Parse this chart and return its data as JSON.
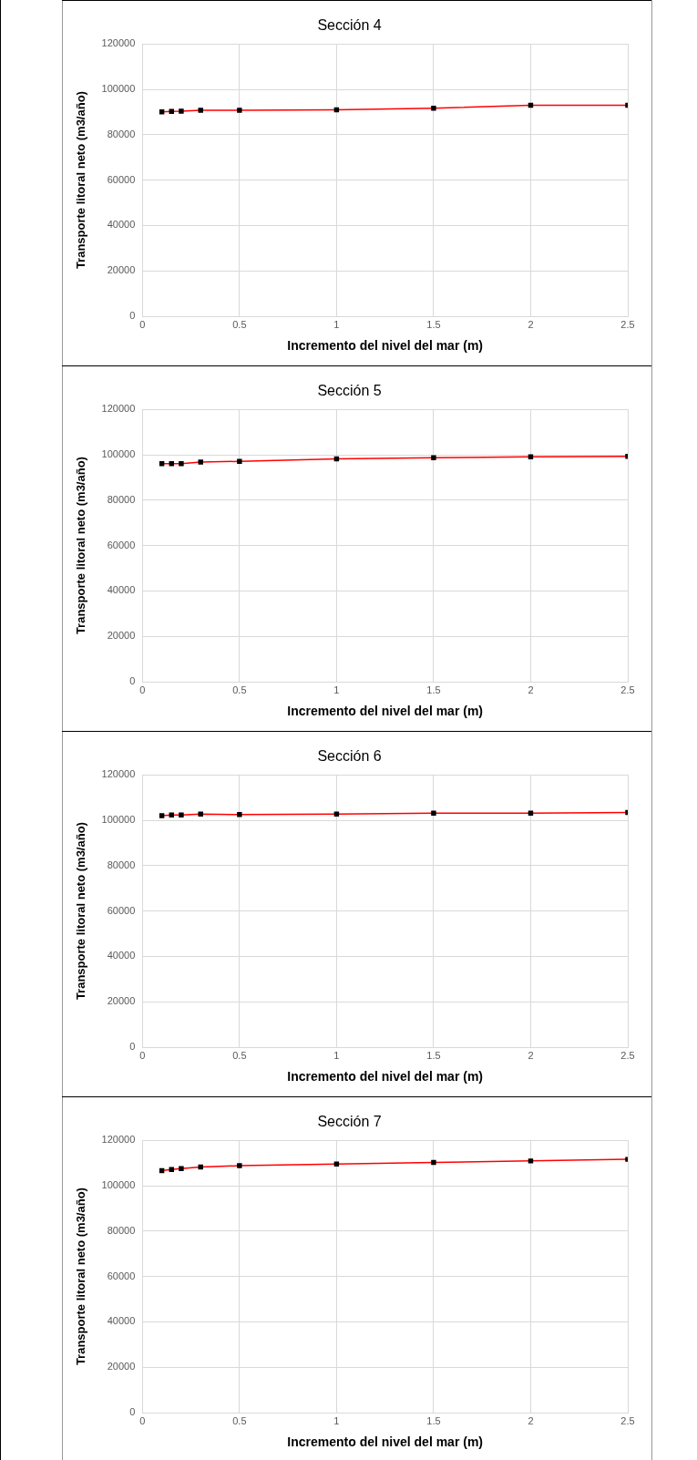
{
  "chart_data": [
    {
      "type": "line",
      "title": "Sección 4",
      "xlabel": "Incremento del nivel del mar (m)",
      "ylabel": "Transporte litoral neto (m3/año)",
      "x": [
        0.1,
        0.15,
        0.2,
        0.3,
        0.5,
        1,
        1.5,
        2,
        2.5
      ],
      "values": [
        90100,
        90300,
        90400,
        90800,
        90800,
        91000,
        91700,
        93000,
        93000
      ],
      "color": "#ff0000",
      "marker": "square",
      "xlim": [
        0,
        2.5
      ],
      "ylim": [
        0,
        120000
      ],
      "xticks": [
        0,
        0.5,
        1,
        1.5,
        2,
        2.5
      ],
      "yticks": [
        0,
        20000,
        40000,
        60000,
        80000,
        100000,
        120000
      ],
      "grid": true
    },
    {
      "type": "line",
      "title": "Sección 5",
      "xlabel": "Incremento del nivel del mar (m)",
      "ylabel": "Transporte litoral neto (m3/año)",
      "x": [
        0.1,
        0.15,
        0.2,
        0.3,
        0.5,
        1,
        1.5,
        2,
        2.5
      ],
      "values": [
        96100,
        96100,
        96100,
        96800,
        97100,
        98200,
        98700,
        99100,
        99300
      ],
      "color": "#ff0000",
      "marker": "square",
      "xlim": [
        0,
        2.5
      ],
      "ylim": [
        0,
        120000
      ],
      "xticks": [
        0,
        0.5,
        1,
        1.5,
        2,
        2.5
      ],
      "yticks": [
        0,
        20000,
        40000,
        60000,
        80000,
        100000,
        120000
      ],
      "grid": true
    },
    {
      "type": "line",
      "title": "Sección 6",
      "xlabel": "Incremento del nivel del mar (m)",
      "ylabel": "Transporte litoral neto (m3/año)",
      "x": [
        0.1,
        0.15,
        0.2,
        0.3,
        0.5,
        1,
        1.5,
        2,
        2.5
      ],
      "values": [
        102000,
        102300,
        102300,
        102700,
        102500,
        102700,
        103100,
        103100,
        103400
      ],
      "color": "#ff0000",
      "marker": "square",
      "xlim": [
        0,
        2.5
      ],
      "ylim": [
        0,
        120000
      ],
      "xticks": [
        0,
        0.5,
        1,
        1.5,
        2,
        2.5
      ],
      "yticks": [
        0,
        20000,
        40000,
        60000,
        80000,
        100000,
        120000
      ],
      "grid": true
    },
    {
      "type": "line",
      "title": "Sección 7",
      "xlabel": "Incremento del nivel del mar (m)",
      "ylabel": "Transporte litoral neto (m3/año)",
      "x": [
        0.1,
        0.15,
        0.2,
        0.3,
        0.5,
        1,
        1.5,
        2,
        2.5
      ],
      "values": [
        106600,
        107100,
        107500,
        108200,
        108800,
        109500,
        110200,
        110900,
        111600
      ],
      "color": "#ff0000",
      "marker": "square",
      "xlim": [
        0,
        2.5
      ],
      "ylim": [
        0,
        120000
      ],
      "xticks": [
        0,
        0.5,
        1,
        1.5,
        2,
        2.5
      ],
      "yticks": [
        0,
        20000,
        40000,
        60000,
        80000,
        100000,
        120000
      ],
      "grid": true
    }
  ]
}
